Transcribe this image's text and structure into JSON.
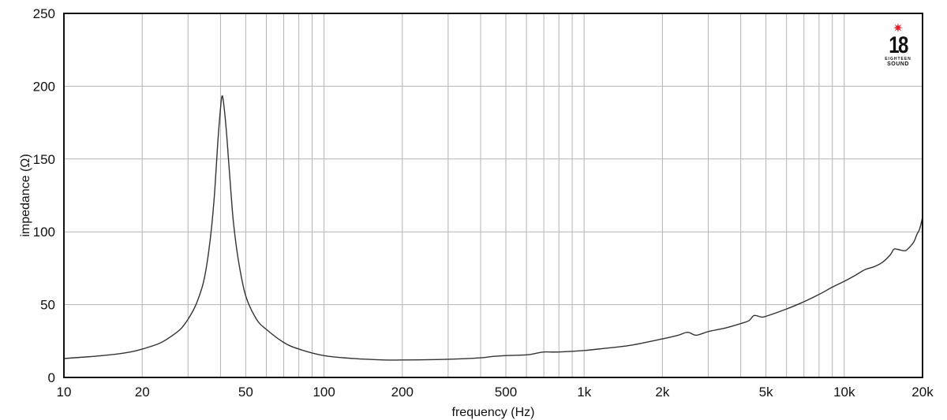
{
  "chart_data": {
    "type": "line",
    "title": "",
    "xlabel": "frequency (Hz)",
    "ylabel": "impedance (Ω)",
    "xscale": "log",
    "xlim": [
      10,
      20000
    ],
    "ylim": [
      0,
      250
    ],
    "grid": true,
    "legend": null,
    "x_ticks": [
      10,
      20,
      50,
      100,
      200,
      500,
      1000,
      2000,
      5000,
      10000,
      20000
    ],
    "x_tick_labels": [
      "10",
      "20",
      "50",
      "100",
      "200",
      "500",
      "1k",
      "2k",
      "5k",
      "10k",
      "20k"
    ],
    "y_ticks": [
      0,
      50,
      100,
      150,
      200,
      250
    ],
    "y_tick_labels": [
      "0",
      "50",
      "100",
      "150",
      "200",
      "250"
    ],
    "series": [
      {
        "name": "impedance",
        "color": "#333333",
        "x": [
          10,
          12,
          15,
          18,
          20,
          23,
          25,
          28,
          30,
          32,
          34,
          35,
          36,
          37,
          38,
          39,
          40,
          40.5,
          41,
          42,
          43,
          44,
          45,
          47,
          50,
          55,
          60,
          70,
          80,
          100,
          130,
          170,
          200,
          300,
          400,
          450,
          500,
          600,
          650,
          700,
          800,
          1000,
          1200,
          1500,
          2000,
          2300,
          2500,
          2700,
          3000,
          3500,
          4000,
          4300,
          4500,
          4800,
          5000,
          6000,
          7000,
          8000,
          9000,
          10000,
          11000,
          12000,
          13000,
          14000,
          15000,
          15500,
          16000,
          17000,
          17500,
          18500,
          19000,
          19500,
          20000
        ],
        "y": [
          13,
          14,
          15.5,
          17.5,
          19.5,
          23,
          26.5,
          33,
          40,
          49,
          62,
          72,
          86,
          104,
          128,
          160,
          185,
          193,
          190,
          172,
          148,
          124,
          104,
          79,
          56,
          40,
          33,
          24,
          19.5,
          15,
          13,
          12,
          12,
          12.5,
          13.5,
          14.5,
          15,
          15.5,
          16.5,
          17.5,
          17.5,
          18.5,
          20,
          22,
          26.5,
          29,
          31,
          29,
          31.5,
          34,
          37,
          39,
          42.5,
          41.5,
          42,
          47,
          52,
          57,
          62,
          66,
          70,
          74,
          76,
          79,
          84,
          88,
          88,
          87,
          88,
          93,
          98,
          102,
          110
        ]
      }
    ],
    "annotations": [
      "18 SOUND logo (top-right)"
    ]
  },
  "logo": {
    "number": "18",
    "line1": "EIGHTEEN",
    "line2": "SOUND",
    "star_color": "#e0202a"
  }
}
